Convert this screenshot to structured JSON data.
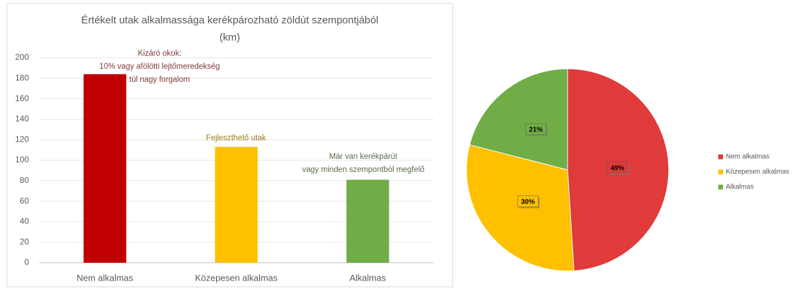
{
  "charts": [
    {
      "chart_data": {
        "type": "bar",
        "title": [
          "Értékelt utak alkalmassága kerékpározható zöldút szempontjából",
          "(km)"
        ],
        "categories": [
          "Nem alkalmas",
          "Közepesen alkalmas",
          "Alkalmas"
        ],
        "values": [
          184,
          113,
          81
        ],
        "colors": [
          "#c00000",
          "#ffc000",
          "#70ad47"
        ],
        "ylim": [
          0,
          200
        ],
        "yticks": [
          0,
          20,
          40,
          60,
          80,
          100,
          120,
          140,
          160,
          180,
          200
        ],
        "grid": true,
        "annotations": [
          [
            "Kizáró okok:",
            "10% vagy afölötti lejtőmeredekség",
            "túl nagy forgalom"
          ],
          [
            "Fejleszthető utak"
          ],
          [
            "Már van kerékpárút",
            "vagy minden szempontból megfelő"
          ]
        ]
      }
    },
    {
      "chart_data": {
        "type": "pie",
        "categories": [
          "Nem alkalmas",
          "Közepesen alkalmas",
          "Alkalmas"
        ],
        "values": [
          49,
          30,
          21
        ],
        "value_labels": [
          "49%",
          "30%",
          "21%"
        ],
        "colors": [
          "#e03a3a",
          "#ffc000",
          "#70ad47"
        ],
        "legend": "right"
      }
    }
  ]
}
